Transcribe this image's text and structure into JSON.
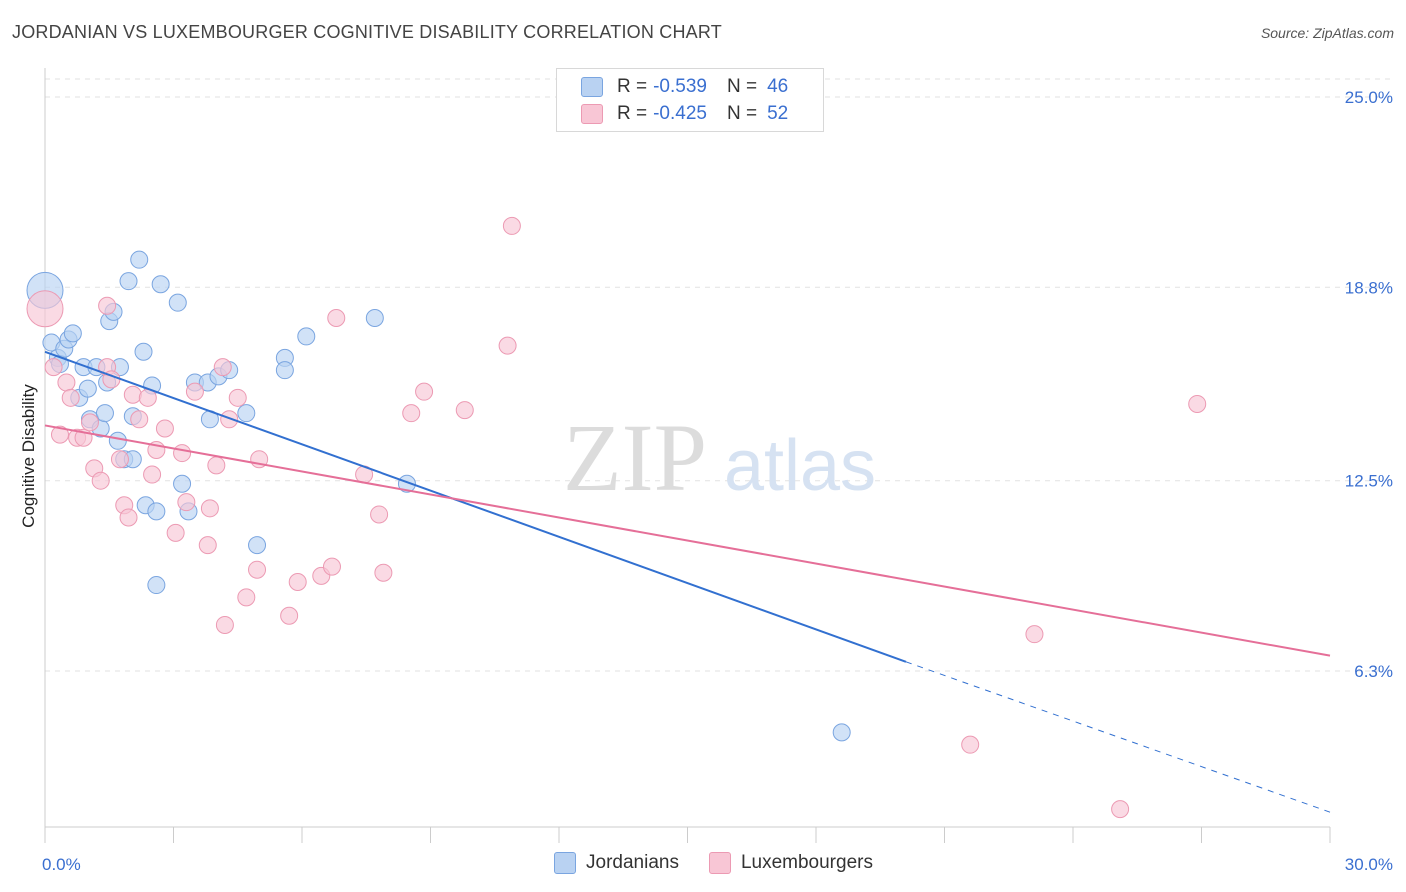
{
  "header": {
    "title": "JORDANIAN VS LUXEMBOURGER COGNITIVE DISABILITY CORRELATION CHART",
    "source": "Source: ZipAtlas.com"
  },
  "watermark": {
    "zip": "ZIP",
    "atlas": "atlas"
  },
  "legend": {
    "jordanians": {
      "r_label": "R =",
      "r_value": "-0.539",
      "n_label": "N =",
      "n_value": "46"
    },
    "luxembourgers": {
      "r_label": "R =",
      "r_value": "-0.425",
      "n_label": "N =",
      "n_value": "52"
    }
  },
  "bottom_legend": {
    "jordanians": "Jordanians",
    "luxembourgers": "Luxembourgers"
  },
  "colors": {
    "blue_fill": "#b9d2f2",
    "blue_stroke": "#7aa5e0",
    "blue_line": "#3270d0",
    "pink_fill": "#f8c6d5",
    "pink_stroke": "#ec9ab3",
    "pink_line": "#e56f98",
    "tick_label": "#3a6fd0",
    "grid": "#e2e2e2"
  },
  "chart_data": {
    "type": "scatter",
    "title": "JORDANIAN VS LUXEMBOURGER COGNITIVE DISABILITY CORRELATION CHART",
    "xlabel": "",
    "ylabel": "Cognitive Disability",
    "xlim": [
      0,
      30
    ],
    "ylim": [
      0,
      26.5
    ],
    "x_tick_labels": [
      {
        "value": 0,
        "label": "0.0%"
      },
      {
        "value": 30,
        "label": "30.0%"
      }
    ],
    "y_tick_labels": [
      {
        "value": 6.3,
        "label": "6.3%"
      },
      {
        "value": 12.5,
        "label": "12.5%"
      },
      {
        "value": 18.8,
        "label": "18.8%"
      },
      {
        "value": 25.0,
        "label": "25.0%"
      }
    ],
    "grid": true,
    "legend_position": "top-center",
    "series": [
      {
        "name": "Jordanians",
        "trend": {
          "x0": 0,
          "y0": 16.7,
          "x1": 20.1,
          "y1": 6.6,
          "dashed_to_x": 30,
          "dashed_to_y": 1.7
        },
        "points": [
          {
            "x": 0.0,
            "y": 18.7,
            "big": true
          },
          {
            "x": 0.15,
            "y": 17.0
          },
          {
            "x": 0.3,
            "y": 16.5
          },
          {
            "x": 0.35,
            "y": 16.3
          },
          {
            "x": 0.45,
            "y": 16.8
          },
          {
            "x": 0.55,
            "y": 17.1
          },
          {
            "x": 0.65,
            "y": 17.3
          },
          {
            "x": 0.8,
            "y": 15.2
          },
          {
            "x": 0.9,
            "y": 16.2
          },
          {
            "x": 1.0,
            "y": 15.5
          },
          {
            "x": 1.05,
            "y": 14.5
          },
          {
            "x": 1.2,
            "y": 16.2
          },
          {
            "x": 1.3,
            "y": 14.2
          },
          {
            "x": 1.4,
            "y": 14.7
          },
          {
            "x": 1.45,
            "y": 15.7
          },
          {
            "x": 1.5,
            "y": 17.7
          },
          {
            "x": 1.6,
            "y": 18.0
          },
          {
            "x": 1.7,
            "y": 13.8
          },
          {
            "x": 1.75,
            "y": 16.2
          },
          {
            "x": 1.85,
            "y": 13.2
          },
          {
            "x": 1.95,
            "y": 19.0
          },
          {
            "x": 2.05,
            "y": 14.6
          },
          {
            "x": 2.05,
            "y": 13.2
          },
          {
            "x": 2.2,
            "y": 19.7
          },
          {
            "x": 2.3,
            "y": 16.7
          },
          {
            "x": 2.35,
            "y": 11.7
          },
          {
            "x": 2.5,
            "y": 15.6
          },
          {
            "x": 2.6,
            "y": 11.5
          },
          {
            "x": 2.6,
            "y": 9.1
          },
          {
            "x": 2.7,
            "y": 18.9
          },
          {
            "x": 3.1,
            "y": 18.3
          },
          {
            "x": 3.2,
            "y": 12.4
          },
          {
            "x": 3.35,
            "y": 11.5
          },
          {
            "x": 3.5,
            "y": 15.7
          },
          {
            "x": 3.8,
            "y": 15.7
          },
          {
            "x": 3.85,
            "y": 14.5
          },
          {
            "x": 4.05,
            "y": 15.9
          },
          {
            "x": 4.3,
            "y": 16.1
          },
          {
            "x": 4.7,
            "y": 14.7
          },
          {
            "x": 4.95,
            "y": 10.4
          },
          {
            "x": 5.6,
            "y": 16.5
          },
          {
            "x": 5.6,
            "y": 16.1
          },
          {
            "x": 6.1,
            "y": 17.2
          },
          {
            "x": 7.7,
            "y": 17.8
          },
          {
            "x": 8.45,
            "y": 12.4
          },
          {
            "x": 18.6,
            "y": 4.3
          }
        ]
      },
      {
        "name": "Luxembourgers",
        "trend": {
          "x0": 0,
          "y0": 14.3,
          "x1": 30,
          "y1": 6.8
        },
        "points": [
          {
            "x": 0.0,
            "y": 18.1,
            "big": true
          },
          {
            "x": 0.2,
            "y": 16.2
          },
          {
            "x": 0.35,
            "y": 14.0
          },
          {
            "x": 0.5,
            "y": 15.7
          },
          {
            "x": 0.6,
            "y": 15.2
          },
          {
            "x": 0.75,
            "y": 13.9
          },
          {
            "x": 0.9,
            "y": 13.9
          },
          {
            "x": 1.05,
            "y": 14.4
          },
          {
            "x": 1.15,
            "y": 12.9
          },
          {
            "x": 1.3,
            "y": 12.5
          },
          {
            "x": 1.45,
            "y": 16.2
          },
          {
            "x": 1.45,
            "y": 18.2
          },
          {
            "x": 1.55,
            "y": 15.8
          },
          {
            "x": 1.75,
            "y": 13.2
          },
          {
            "x": 1.85,
            "y": 11.7
          },
          {
            "x": 1.95,
            "y": 11.3
          },
          {
            "x": 2.05,
            "y": 15.3
          },
          {
            "x": 2.2,
            "y": 14.5
          },
          {
            "x": 2.4,
            "y": 15.2
          },
          {
            "x": 2.5,
            "y": 12.7
          },
          {
            "x": 2.6,
            "y": 13.5
          },
          {
            "x": 2.8,
            "y": 14.2
          },
          {
            "x": 3.05,
            "y": 10.8
          },
          {
            "x": 3.2,
            "y": 13.4
          },
          {
            "x": 3.3,
            "y": 11.8
          },
          {
            "x": 3.5,
            "y": 15.4
          },
          {
            "x": 3.8,
            "y": 10.4
          },
          {
            "x": 3.85,
            "y": 11.6
          },
          {
            "x": 4.0,
            "y": 13.0
          },
          {
            "x": 4.15,
            "y": 16.2
          },
          {
            "x": 4.2,
            "y": 7.8
          },
          {
            "x": 4.3,
            "y": 14.5
          },
          {
            "x": 4.5,
            "y": 15.2
          },
          {
            "x": 4.7,
            "y": 8.7
          },
          {
            "x": 4.95,
            "y": 9.6
          },
          {
            "x": 5.0,
            "y": 13.2
          },
          {
            "x": 5.7,
            "y": 8.1
          },
          {
            "x": 5.9,
            "y": 9.2
          },
          {
            "x": 6.45,
            "y": 9.4
          },
          {
            "x": 6.7,
            "y": 9.7
          },
          {
            "x": 6.8,
            "y": 17.8
          },
          {
            "x": 7.45,
            "y": 12.7
          },
          {
            "x": 7.8,
            "y": 11.4
          },
          {
            "x": 7.9,
            "y": 9.5
          },
          {
            "x": 8.55,
            "y": 14.7
          },
          {
            "x": 8.85,
            "y": 15.4
          },
          {
            "x": 9.8,
            "y": 14.8
          },
          {
            "x": 10.8,
            "y": 16.9
          },
          {
            "x": 10.9,
            "y": 20.8
          },
          {
            "x": 23.1,
            "y": 7.5
          },
          {
            "x": 25.1,
            "y": 1.8
          },
          {
            "x": 21.6,
            "y": 3.9
          },
          {
            "x": 26.9,
            "y": 15.0
          }
        ]
      }
    ]
  }
}
